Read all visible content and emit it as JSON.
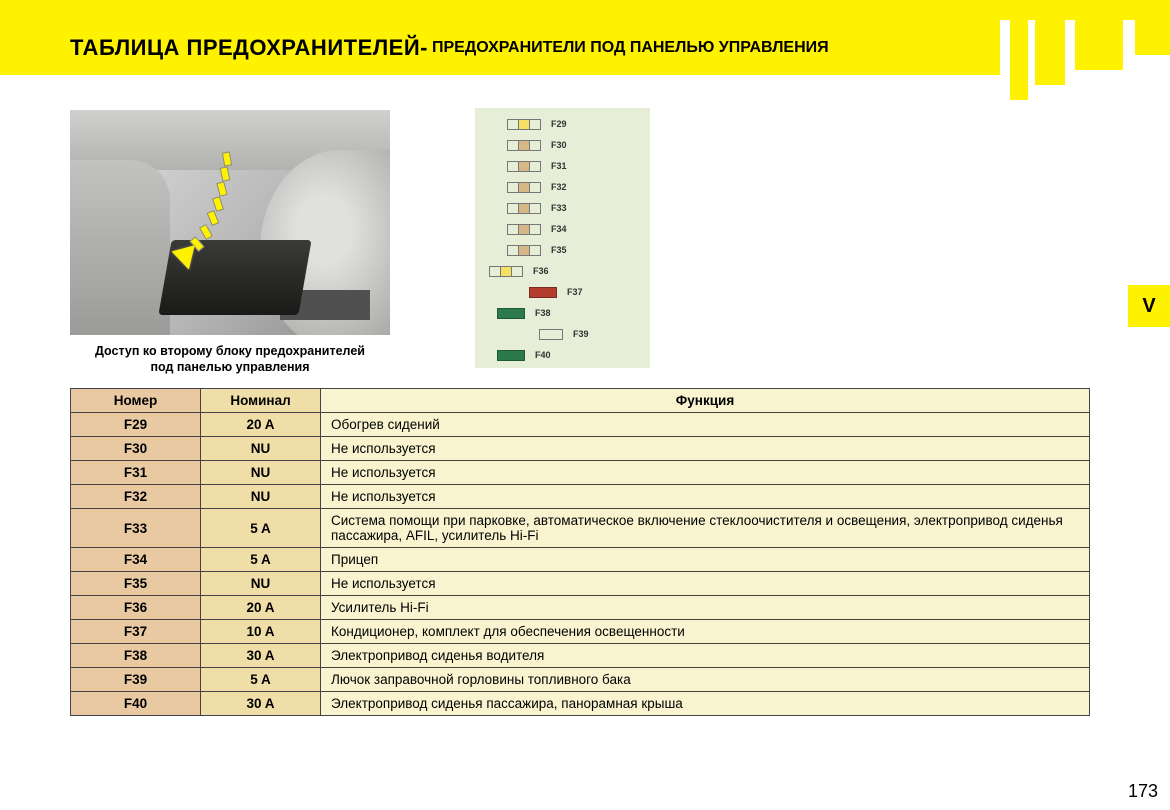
{
  "page_number": "173",
  "section_tab": "V",
  "header": {
    "title_main": "ТАБЛИЦА ПРЕДОХРАНИТЕЛЕЙ",
    "title_sep": " - ",
    "title_sub": "ПРЕДОХРАНИТЕЛИ ПОД ПАНЕЛЬЮ УПРАВЛЕНИЯ"
  },
  "caption": {
    "line1": "Доступ ко второму блоку предохранителей",
    "line2": "под панелью управления"
  },
  "fuse_diagram": {
    "bg": "#e6eed8",
    "rows": [
      {
        "label": "F29",
        "style": "yellow",
        "offset": 18
      },
      {
        "label": "F30",
        "style": "tan",
        "offset": 18
      },
      {
        "label": "F31",
        "style": "tan",
        "offset": 18
      },
      {
        "label": "F32",
        "style": "tan",
        "offset": 18
      },
      {
        "label": "F33",
        "style": "tan",
        "offset": 18
      },
      {
        "label": "F34",
        "style": "tan",
        "offset": 18
      },
      {
        "label": "F35",
        "style": "tan",
        "offset": 18
      },
      {
        "label": "F36",
        "style": "yellow",
        "offset": 0
      },
      {
        "label": "F37",
        "style": "red",
        "offset": 40
      },
      {
        "label": "F38",
        "style": "green",
        "offset": 8
      },
      {
        "label": "F39",
        "style": "small",
        "offset": 50
      },
      {
        "label": "F40",
        "style": "green",
        "offset": 8
      }
    ]
  },
  "table": {
    "headers": {
      "num": "Номер",
      "rate": "Номинал",
      "func": "Функция"
    },
    "header_bg": {
      "num": "#e9c9a2",
      "rate": "#f0dea8",
      "func": "#f9f4cf"
    },
    "cell_bg": {
      "num": "#e9c9a2",
      "rate": "#f0dea8",
      "func": "#f9f4cf"
    },
    "border_color": "#444444",
    "rows": [
      {
        "num": "F29",
        "rate": "20 A",
        "func": "Обогрев сидений"
      },
      {
        "num": "F30",
        "rate": "NU",
        "func": "Не используется"
      },
      {
        "num": "F31",
        "rate": "NU",
        "func": "Не используется"
      },
      {
        "num": "F32",
        "rate": "NU",
        "func": "Не используется"
      },
      {
        "num": "F33",
        "rate": "5 A",
        "func": "Система помощи при парковке, автоматическое включение стеклоочистителя и освещения, электропривод сиденья пассажира, AFIL, усилитель Hi-Fi"
      },
      {
        "num": "F34",
        "rate": "5 A",
        "func": "Прицеп"
      },
      {
        "num": "F35",
        "rate": "NU",
        "func": "Не используется"
      },
      {
        "num": "F36",
        "rate": "20 A",
        "func": "Усилитель Hi-Fi"
      },
      {
        "num": "F37",
        "rate": "10 A",
        "func": "Кондиционер, комплект для обеспечения освещенности"
      },
      {
        "num": "F38",
        "rate": "30 A",
        "func": "Электропривод сиденья водителя"
      },
      {
        "num": "F39",
        "rate": "5 A",
        "func": "Лючок заправочной горловины топливного бака"
      },
      {
        "num": "F40",
        "rate": "30 A",
        "func": "Электропривод сиденья пассажира, панорамная крыша"
      }
    ]
  },
  "colors": {
    "brand_yellow": "#fef200",
    "page_bg": "#ffffff"
  }
}
